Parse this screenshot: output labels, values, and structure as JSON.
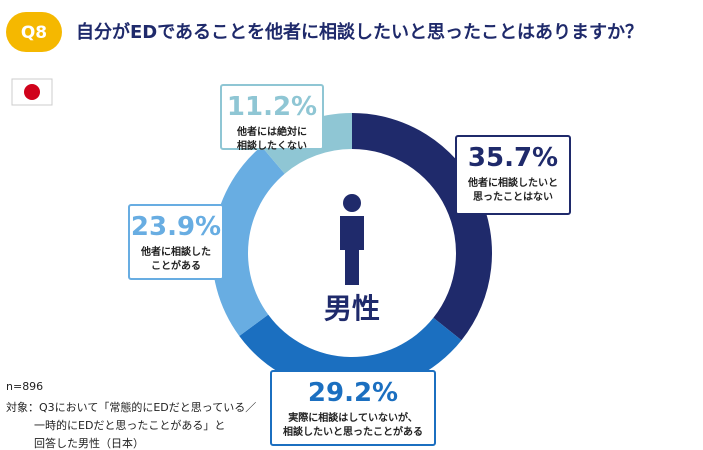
{
  "chart_data": {
    "type": "donut",
    "badge": "Q8",
    "title": "自分がEDであることを他者に相談したいと思ったことはありますか？",
    "center_label": "男性",
    "categories": [
      "他者に相談したいと\n思ったことはない",
      "実際に相談はしていないが、\n相談したいと思ったことがある",
      "他者に相談した\nことがある",
      "他者には絶対に\n相談したくない"
    ],
    "values": [
      35.7,
      29.2,
      23.9,
      11.2
    ],
    "value_labels": [
      "35.7%",
      "29.2%",
      "23.9%",
      "11.2%"
    ],
    "colors": [
      "#1f2a6b",
      "#1b6fc0",
      "#68ade2",
      "#8fc6d4"
    ],
    "notes": [
      "n=896",
      "対象：Q3において「常態的にEDだと思っている／",
      "一時的にEDだと思ったことがある」と",
      "回答した男性（日本）"
    ]
  }
}
